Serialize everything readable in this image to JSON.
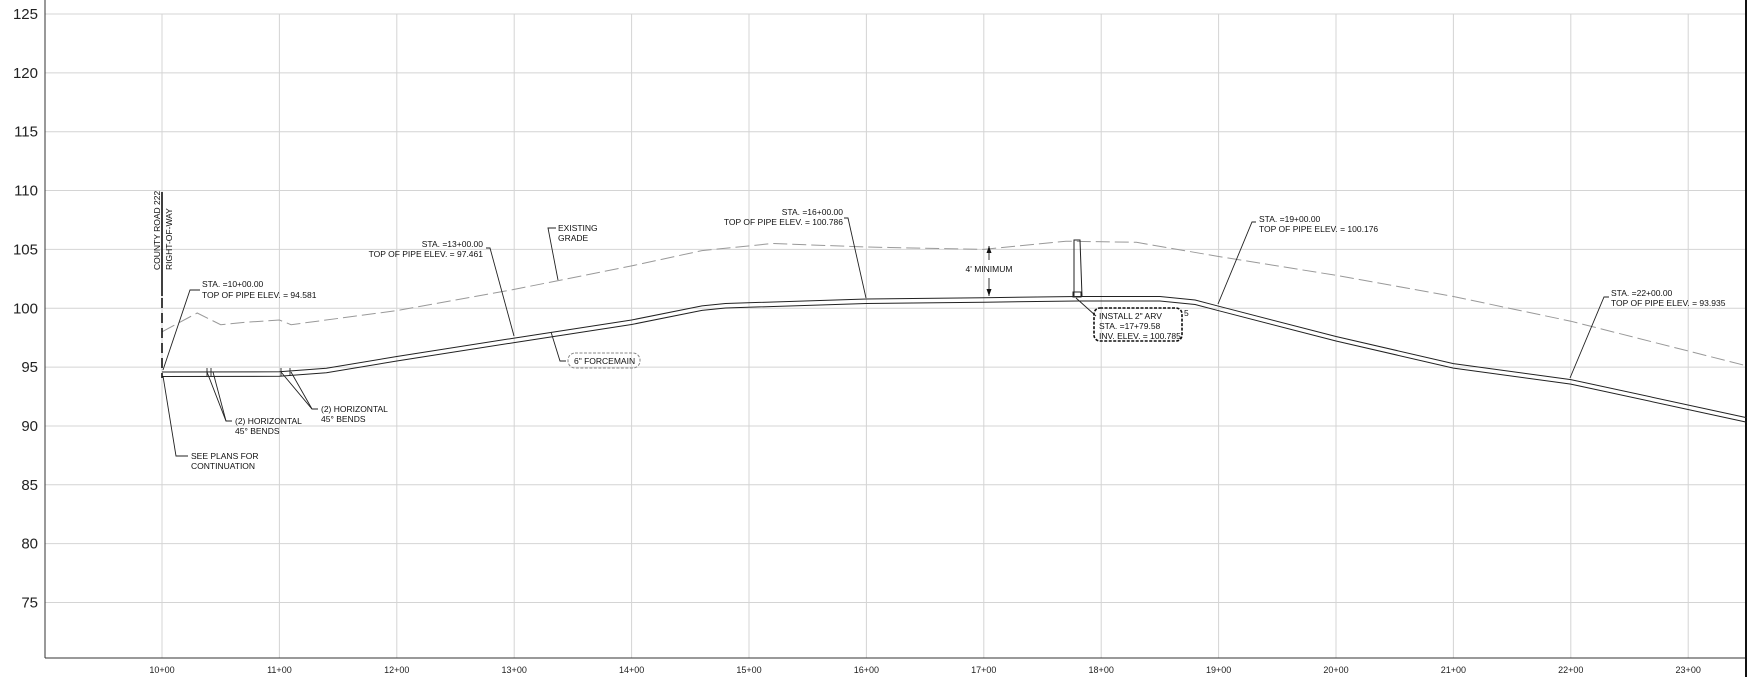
{
  "y_axis": {
    "labels": [
      "125",
      "120",
      "115",
      "110",
      "105",
      "100",
      "95",
      "90",
      "85",
      "80",
      "75"
    ]
  },
  "x_axis": {
    "labels": [
      "10+00",
      "11+00",
      "12+00",
      "13+00",
      "14+00",
      "15+00",
      "16+00",
      "17+00",
      "18+00",
      "19+00",
      "20+00",
      "21+00",
      "22+00",
      "23+00"
    ]
  },
  "row_label": {
    "line1": "COUNTY ROAD 222",
    "line2": "RIGHT-OF-WAY"
  },
  "callouts": {
    "sta_1000": {
      "line1": "STA. =10+00.00",
      "line2": "TOP OF PIPE ELEV. = 94.581"
    },
    "sta_1300": {
      "line1": "STA. =13+00.00",
      "line2": "TOP OF PIPE ELEV. = 97.461"
    },
    "existing_grade": {
      "line1": "EXISTING",
      "line2": "GRADE"
    },
    "sta_1600": {
      "line1": "STA. =16+00.00",
      "line2": "TOP OF PIPE ELEV. = 100.786"
    },
    "min_cover": {
      "text": "4' MINIMUM"
    },
    "sta_1900": {
      "line1": "STA. =19+00.00",
      "line2": "TOP OF PIPE ELEV. = 100.176"
    },
    "sta_2200": {
      "line1": "STA. =22+00.00",
      "line2": "TOP OF PIPE ELEV. = 93.935"
    },
    "arv": {
      "line1": "INSTALL 2\" ARV",
      "line2": "STA. =17+79.58",
      "line3": "INV. ELEV. = 100.785"
    },
    "arv_tag": {
      "text": "5"
    },
    "forcemain": {
      "text": "6\" FORCEMAIN"
    },
    "bends_1": {
      "line1": "(2) HORIZONTAL",
      "line2": "45° BENDS"
    },
    "bends_2": {
      "line1": "(2) HORIZONTAL",
      "line2": "45° BENDS"
    },
    "see_plans": {
      "line1": "SEE PLANS FOR",
      "line2": "CONTINUATION"
    }
  },
  "profile_data": {
    "pipe_top": [
      [
        10,
        94.581
      ],
      [
        11,
        94.6
      ],
      [
        11.4,
        94.9
      ],
      [
        12,
        95.9
      ],
      [
        13,
        97.461
      ],
      [
        14,
        99.0
      ],
      [
        14.6,
        100.2
      ],
      [
        14.8,
        100.4
      ],
      [
        16,
        100.786
      ],
      [
        17,
        100.9
      ],
      [
        17.8,
        101.0
      ],
      [
        18.5,
        101.0
      ],
      [
        18.8,
        100.7
      ],
      [
        19,
        100.176
      ],
      [
        20,
        97.6
      ],
      [
        21,
        95.3
      ],
      [
        22,
        93.935
      ],
      [
        23.5,
        90.7
      ]
    ],
    "existing_grade": [
      [
        10,
        98
      ],
      [
        10.3,
        99.6
      ],
      [
        10.5,
        98.6
      ],
      [
        10.7,
        98.8
      ],
      [
        11,
        99.0
      ],
      [
        11.1,
        98.6
      ],
      [
        12,
        99.8
      ],
      [
        13,
        101.6
      ],
      [
        14,
        103.6
      ],
      [
        14.6,
        104.9
      ],
      [
        15.2,
        105.5
      ],
      [
        16,
        105.2
      ],
      [
        17,
        105.0
      ],
      [
        17.7,
        105.7
      ],
      [
        18.3,
        105.6
      ],
      [
        19,
        104.4
      ],
      [
        20,
        102.8
      ],
      [
        21,
        101.0
      ],
      [
        22,
        98.9
      ],
      [
        23.5,
        95.1
      ]
    ]
  }
}
